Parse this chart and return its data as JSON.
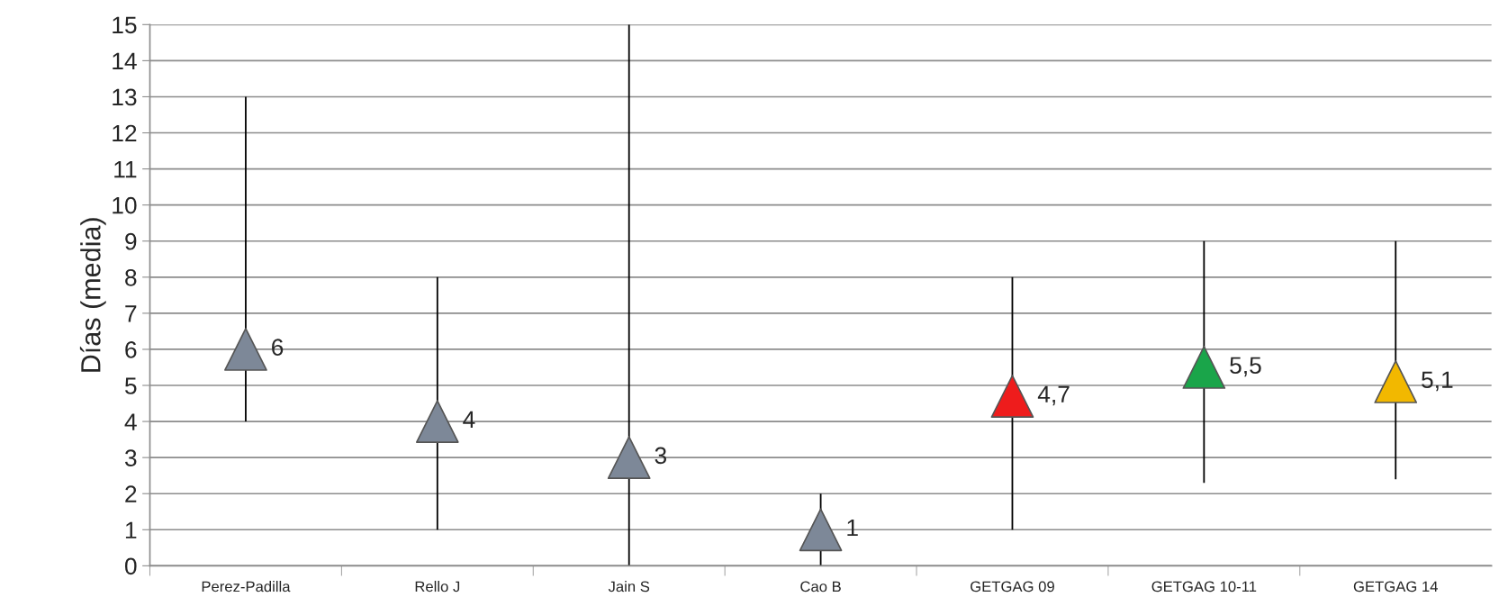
{
  "chart_data": {
    "type": "scatter",
    "ylabel": "Días (media)",
    "categories": [
      "Perez-Padilla",
      "Rello J",
      "Jain S",
      "Cao B",
      "GETGAG 09",
      "GETGAG 10-11",
      "GETGAG 14"
    ],
    "values": [
      6,
      4,
      3,
      1,
      4.7,
      5.5,
      5.1
    ],
    "colors": [
      "#7d8898",
      "#7d8898",
      "#7d8898",
      "#7d8898",
      "#ee1c1c",
      "#1aa54a",
      "#f2b800"
    ],
    "errors": [
      [
        4,
        13
      ],
      [
        1,
        8
      ],
      [
        0,
        15
      ],
      [
        0,
        2
      ],
      [
        1,
        8
      ],
      [
        2.3,
        9
      ],
      [
        2.4,
        9
      ]
    ],
    "value_labels": [
      "6",
      "4",
      "3",
      "1",
      "4,7",
      "5,5",
      "5,1"
    ],
    "ylim": [
      0,
      15
    ],
    "yticks": [
      0,
      1,
      2,
      3,
      4,
      5,
      6,
      7,
      8,
      9,
      10,
      11,
      12,
      13,
      14,
      15
    ],
    "grid": "y",
    "marker": "triangle",
    "legend": false
  }
}
